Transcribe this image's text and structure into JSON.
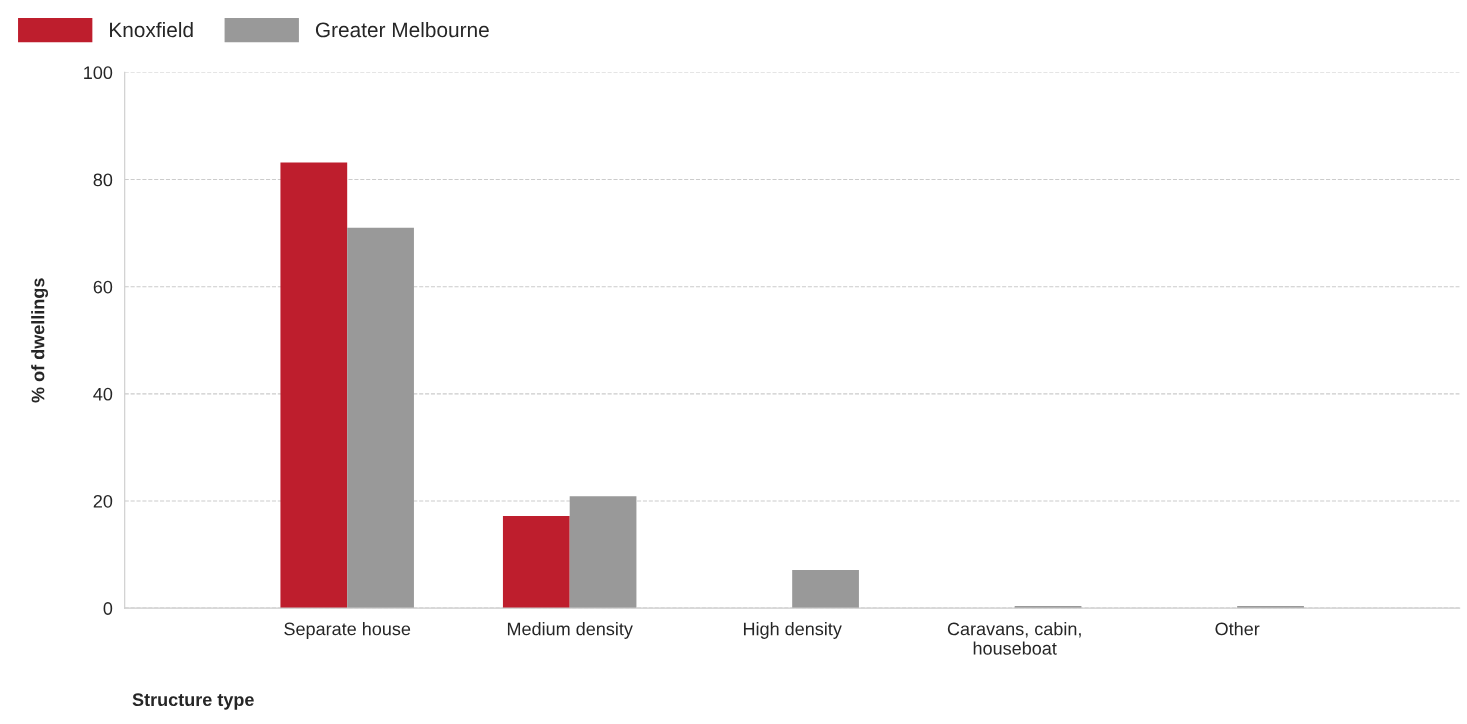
{
  "chart_data": {
    "type": "bar",
    "xlabel": "Structure type",
    "ylabel": "% of dwellings",
    "categories": [
      "Separate house",
      "Medium density",
      "High density",
      "Caravans, cabin,\nhouseboat",
      "Other"
    ],
    "series": [
      {
        "name": "Knoxfield",
        "color": "#be1e2d",
        "values": [
          83.2,
          17.2,
          null,
          null,
          null
        ]
      },
      {
        "name": "Greater Melbourne",
        "color": "#999999",
        "values": [
          71.0,
          20.9,
          7.1,
          0.4,
          0.4
        ]
      }
    ],
    "ylim": [
      0,
      100
    ],
    "yticks": [
      0,
      20,
      40,
      60,
      80,
      100
    ],
    "grid": "y",
    "legend": "top left"
  }
}
